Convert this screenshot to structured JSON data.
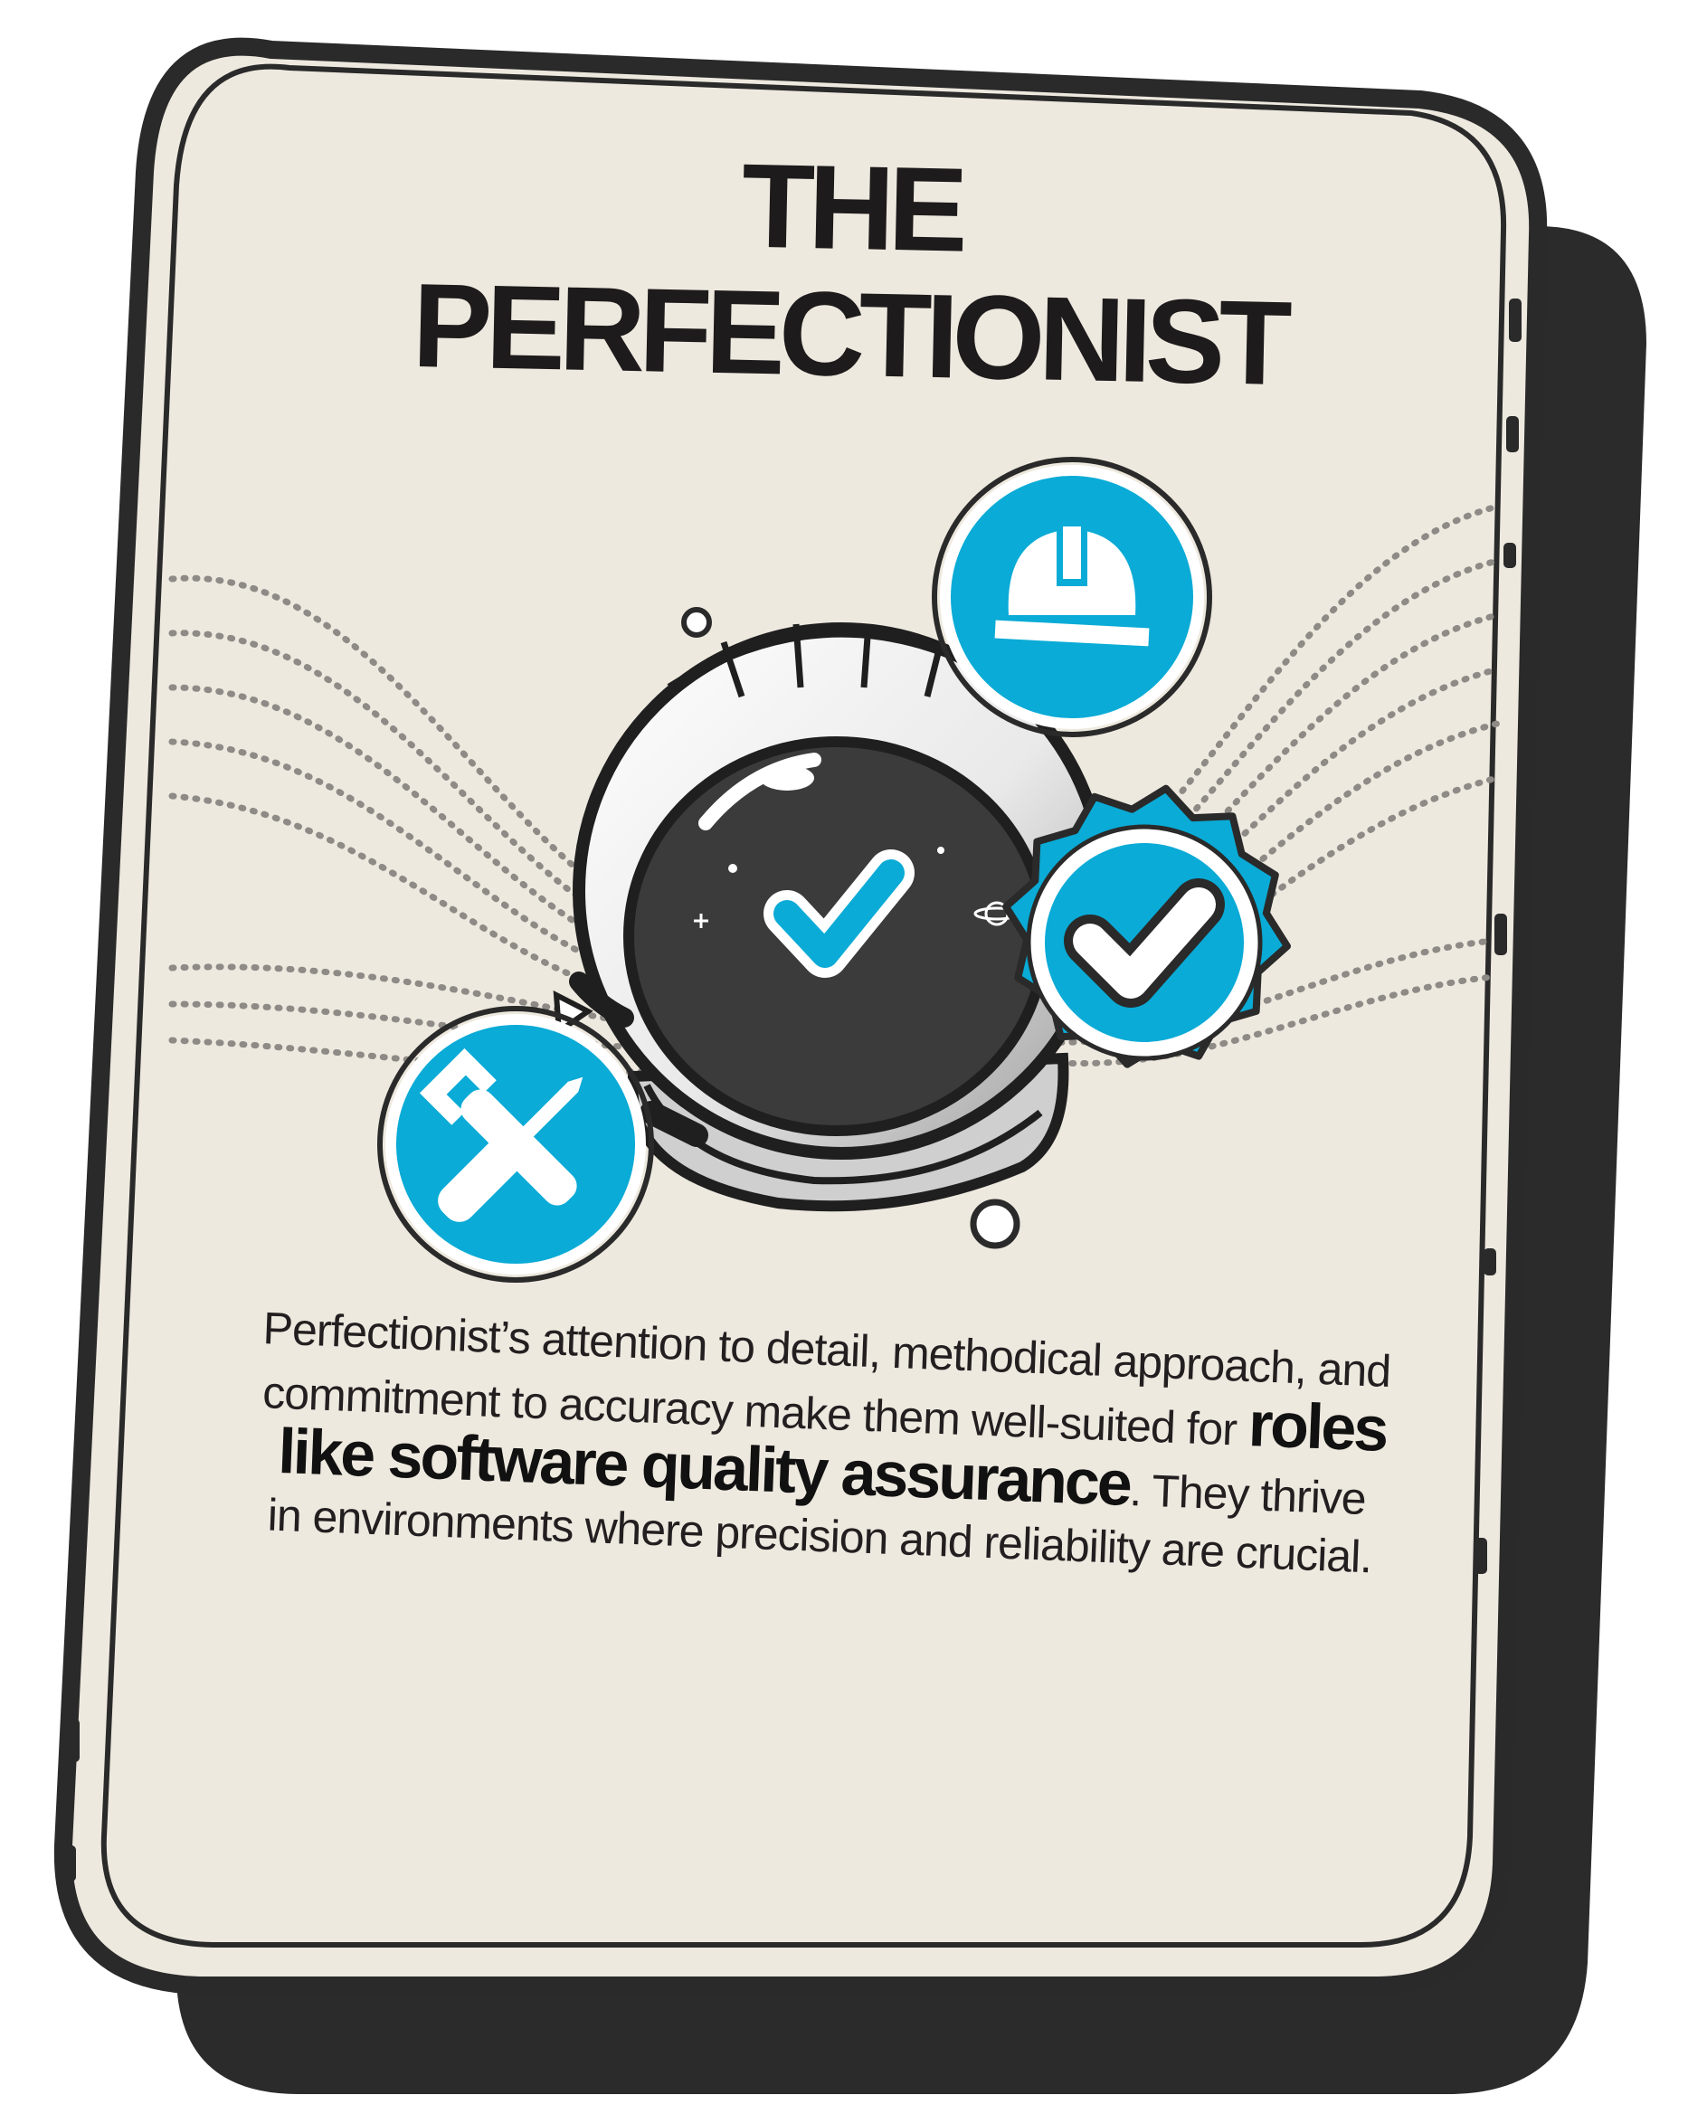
{
  "card": {
    "title_line1": "THE",
    "title_line2": "PERFECTIONIST",
    "description_before": "Perfectionist’s attention to detail, methodical approach, and commitment to accuracy make them well-suited for ",
    "description_highlight": "roles like software quality assurance",
    "description_after": ". They thrive in environments where precision and reliability are crucial."
  },
  "colors": {
    "card_background": "#eee9df",
    "card_outline": "#2a2a2a",
    "shadow": "#2b2b2b",
    "accent_blue": "#0aabd6",
    "visor": "#3b3b3b",
    "white": "#ffffff"
  },
  "icons": [
    "hard-hat-icon",
    "checkmark-badge-icon",
    "wrench-screwdriver-icon",
    "astronaut-helmet-icon",
    "visor-checkmark-icon"
  ]
}
